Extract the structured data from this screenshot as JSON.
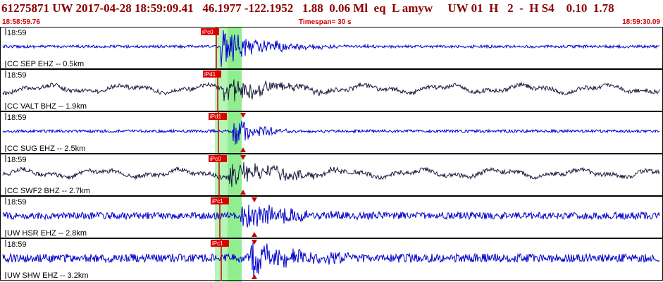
{
  "header": {
    "info": "61275871 UW 2017-04-28 18:59:09.41   46.1977 -122.1952   1.88  0.06 Ml  eq  L amyw     UW 01  H   2  -  H S4    0.10  1.78",
    "start_time": "18:58:59.76",
    "timespan": "Timespan=  30 s",
    "end_time": "18:59:30.09"
  },
  "colors": {
    "header_text": "#8b0000",
    "time_text": "#cc0000",
    "trace_blue": "#0000cc",
    "trace_black": "#1a1a40",
    "pick_flag": "#dd0000",
    "window_highlight": "#90ee90"
  },
  "channels": [
    {
      "time_label": "18:59",
      "station": "CC SEP EHZ -- 0.5km",
      "pick": "iPc0",
      "color": "blue",
      "s_pick": false
    },
    {
      "time_label": "18:59",
      "station": "CC VALT BHZ -- 1.9km",
      "pick": "iPd1",
      "color": "black",
      "s_pick": false
    },
    {
      "time_label": "18:59",
      "station": "CC SUG EHZ -- 2.5km",
      "pick": "iPd1",
      "color": "blue",
      "s_pick": true
    },
    {
      "time_label": "18:59",
      "station": "CC SWF2 BHZ -- 2.7km",
      "pick": "iPc0",
      "color": "black",
      "s_pick": true
    },
    {
      "time_label": "18:59",
      "station": "UW HSR EHZ -- 2.8km",
      "pick": "iPc1",
      "color": "blue",
      "s_pick": true
    },
    {
      "time_label": "18:59",
      "station": "UW SHW EHZ -- 3.2km",
      "pick": "iPc1",
      "color": "blue",
      "s_pick": true
    }
  ]
}
